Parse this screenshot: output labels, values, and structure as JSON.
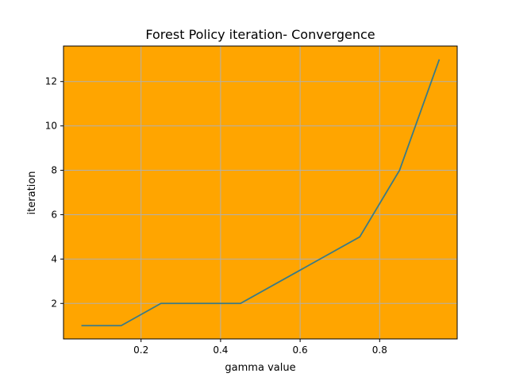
{
  "chart_data": {
    "type": "line",
    "title": "Forest  Policy iteration- Convergence",
    "xlabel": "gamma value",
    "ylabel": "iteration",
    "x": [
      0.05,
      0.15,
      0.25,
      0.35,
      0.45,
      0.55,
      0.65,
      0.75,
      0.85,
      0.95
    ],
    "series": [
      {
        "values": [
          1,
          1,
          2,
          2,
          2,
          3,
          4,
          5,
          8,
          13
        ],
        "color": "#3a7b87"
      }
    ],
    "xlim": [
      0.005,
      0.995
    ],
    "ylim": [
      0.4,
      13.6
    ],
    "xticks": [
      {
        "value": 0.2,
        "label": "0.2"
      },
      {
        "value": 0.4,
        "label": "0.4"
      },
      {
        "value": 0.6,
        "label": "0.6"
      },
      {
        "value": 0.8,
        "label": "0.8"
      }
    ],
    "yticks": [
      {
        "value": 2,
        "label": "2"
      },
      {
        "value": 4,
        "label": "4"
      },
      {
        "value": 6,
        "label": "6"
      },
      {
        "value": 8,
        "label": "8"
      },
      {
        "value": 10,
        "label": "10"
      },
      {
        "value": 12,
        "label": "12"
      }
    ],
    "grid": true,
    "plot_background": "#ffa500",
    "grid_color": "#b0b0b0"
  }
}
